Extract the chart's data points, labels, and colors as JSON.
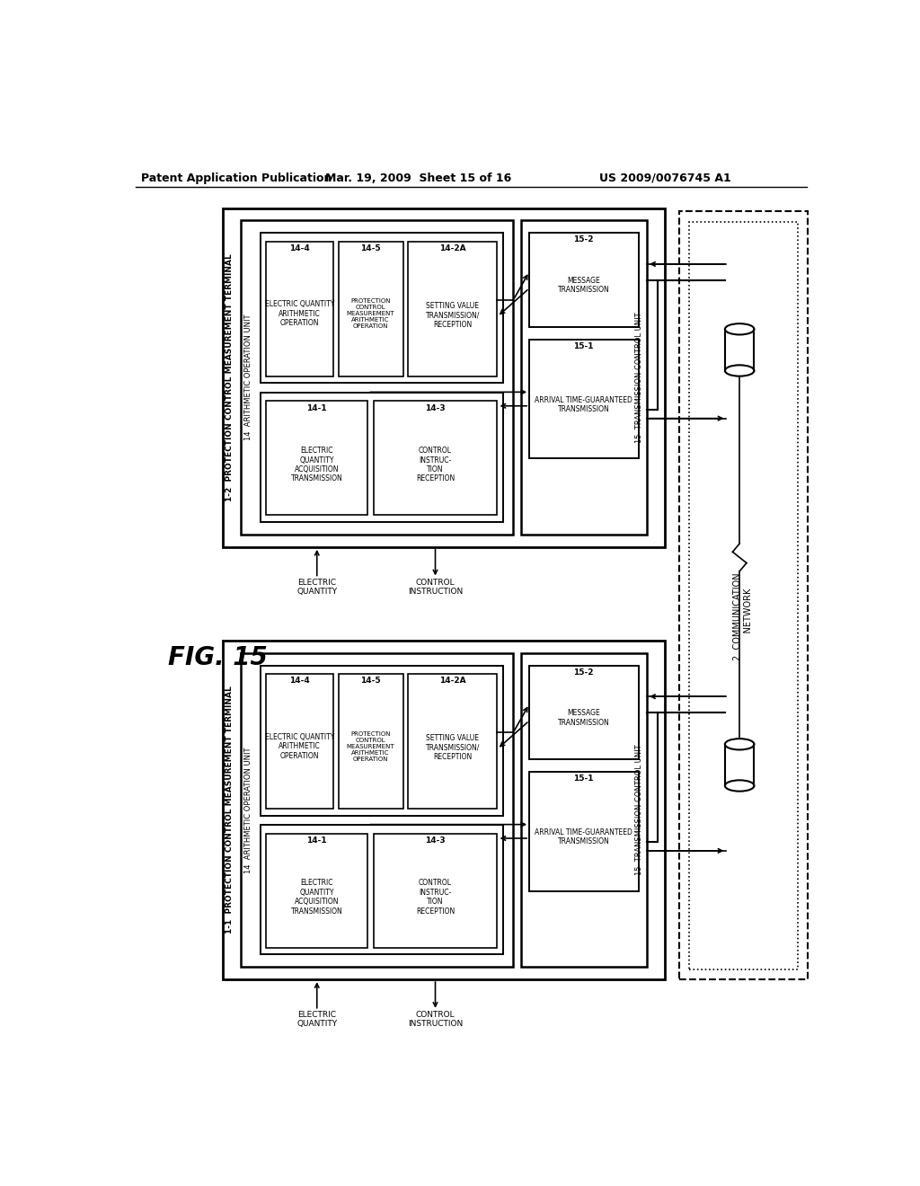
{
  "bg_color": "#ffffff",
  "header_left": "Patent Application Publication",
  "header_mid": "Mar. 19, 2009  Sheet 15 of 16",
  "header_right": "US 2009/0076745 A1"
}
